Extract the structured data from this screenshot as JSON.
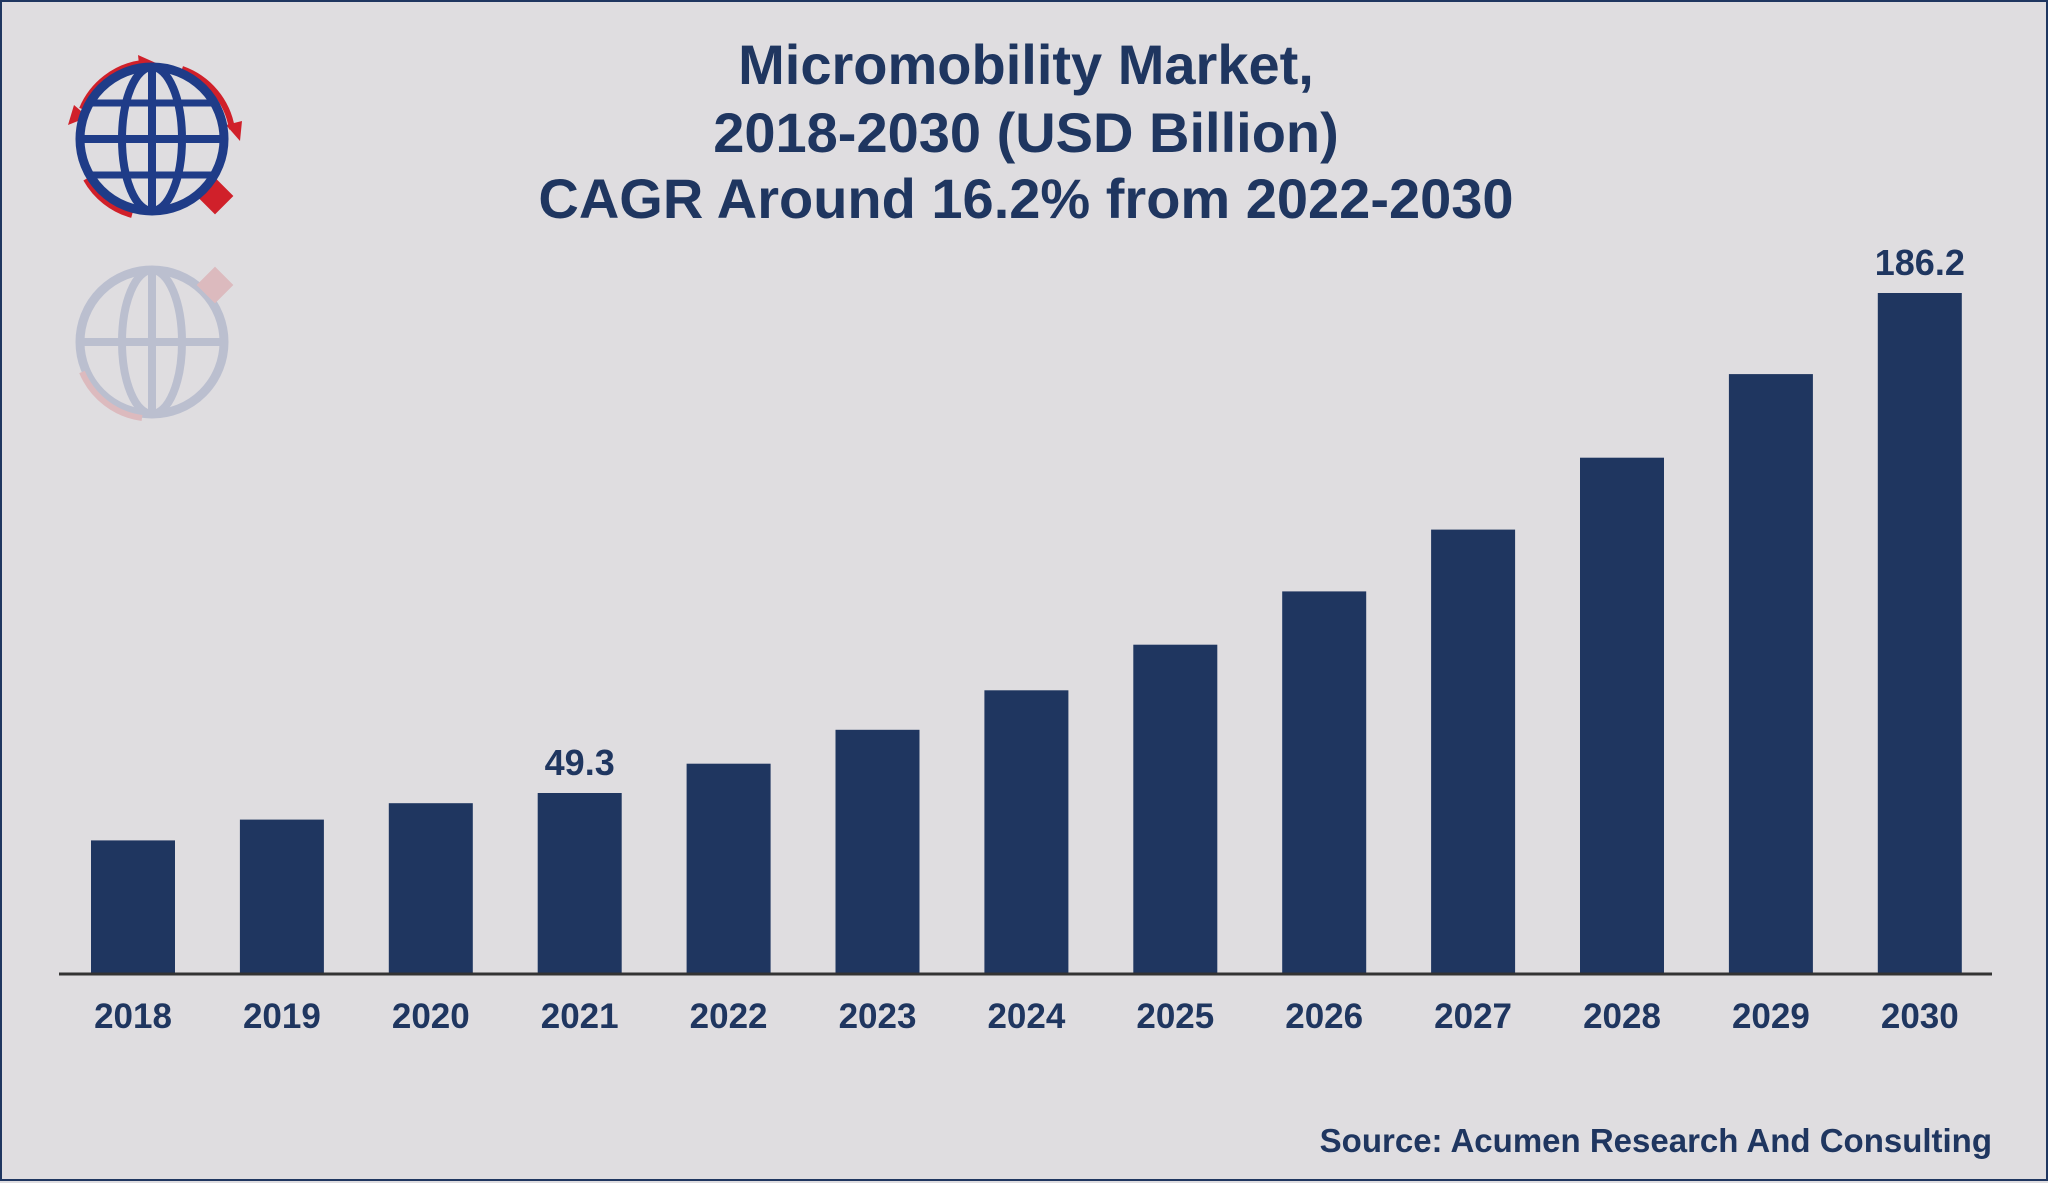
{
  "chart_data": {
    "type": "bar",
    "title": "Micromobility Market,",
    "subtitle_lines": [
      "2018-2030 (USD Billion)",
      "CAGR Around 16.2% from 2022-2030"
    ],
    "categories": [
      "2018",
      "2019",
      "2020",
      "2021",
      "2022",
      "2023",
      "2024",
      "2025",
      "2026",
      "2027",
      "2028",
      "2029",
      "2030"
    ],
    "values": [
      36.3,
      42.0,
      46.5,
      49.3,
      57.3,
      66.6,
      77.4,
      89.9,
      104.5,
      121.4,
      141.1,
      164.0,
      186.2
    ],
    "data_labels": {
      "2021": "49.3",
      "2030": "186.2"
    },
    "ylim": [
      0,
      186.2
    ],
    "xlabel": "",
    "ylabel": "",
    "grid": false,
    "legend": "none",
    "bar_color": "#1f3660"
  },
  "source": "Source: Acumen Research And Consulting",
  "colors": {
    "background": "#dfdde0",
    "text": "#1f3660",
    "logo_red": "#d0202a",
    "logo_blue": "#1f3c88"
  },
  "logo": {
    "icon": "globe-arrows-logo-icon"
  }
}
